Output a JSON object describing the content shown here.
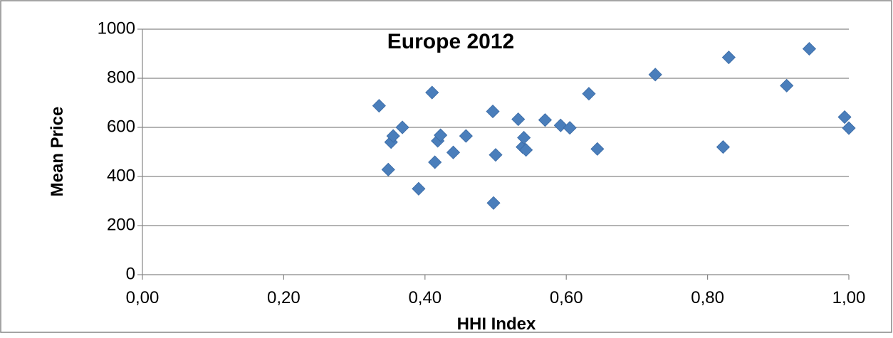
{
  "chart_data": {
    "type": "scatter",
    "title": "Europe 2012",
    "xlabel": "HHI Index",
    "ylabel": "Mean Price",
    "xlim": [
      0,
      1
    ],
    "ylim": [
      0,
      1000
    ],
    "x_ticks": [
      "0,00",
      "0,20",
      "0,40",
      "0,60",
      "0,80",
      "1,00"
    ],
    "y_ticks": [
      "0",
      "200",
      "400",
      "600",
      "800",
      "1000"
    ],
    "grid": "horizontal",
    "legend": "none",
    "marker": "diamond",
    "marker_color": "#4a7ebb",
    "series": [
      {
        "points": [
          {
            "x": 0.335,
            "y": 688
          },
          {
            "x": 0.348,
            "y": 428
          },
          {
            "x": 0.352,
            "y": 540
          },
          {
            "x": 0.355,
            "y": 565
          },
          {
            "x": 0.368,
            "y": 600
          },
          {
            "x": 0.391,
            "y": 350
          },
          {
            "x": 0.41,
            "y": 742
          },
          {
            "x": 0.414,
            "y": 458
          },
          {
            "x": 0.418,
            "y": 545
          },
          {
            "x": 0.422,
            "y": 568
          },
          {
            "x": 0.44,
            "y": 498
          },
          {
            "x": 0.458,
            "y": 565
          },
          {
            "x": 0.496,
            "y": 665
          },
          {
            "x": 0.497,
            "y": 292
          },
          {
            "x": 0.5,
            "y": 488
          },
          {
            "x": 0.532,
            "y": 633
          },
          {
            "x": 0.538,
            "y": 520
          },
          {
            "x": 0.54,
            "y": 558
          },
          {
            "x": 0.543,
            "y": 508
          },
          {
            "x": 0.57,
            "y": 630
          },
          {
            "x": 0.592,
            "y": 608
          },
          {
            "x": 0.605,
            "y": 598
          },
          {
            "x": 0.632,
            "y": 737
          },
          {
            "x": 0.644,
            "y": 512
          },
          {
            "x": 0.726,
            "y": 815
          },
          {
            "x": 0.822,
            "y": 520
          },
          {
            "x": 0.83,
            "y": 885
          },
          {
            "x": 0.912,
            "y": 770
          },
          {
            "x": 0.944,
            "y": 920
          },
          {
            "x": 0.994,
            "y": 642
          },
          {
            "x": 1.0,
            "y": 597
          }
        ]
      }
    ]
  }
}
